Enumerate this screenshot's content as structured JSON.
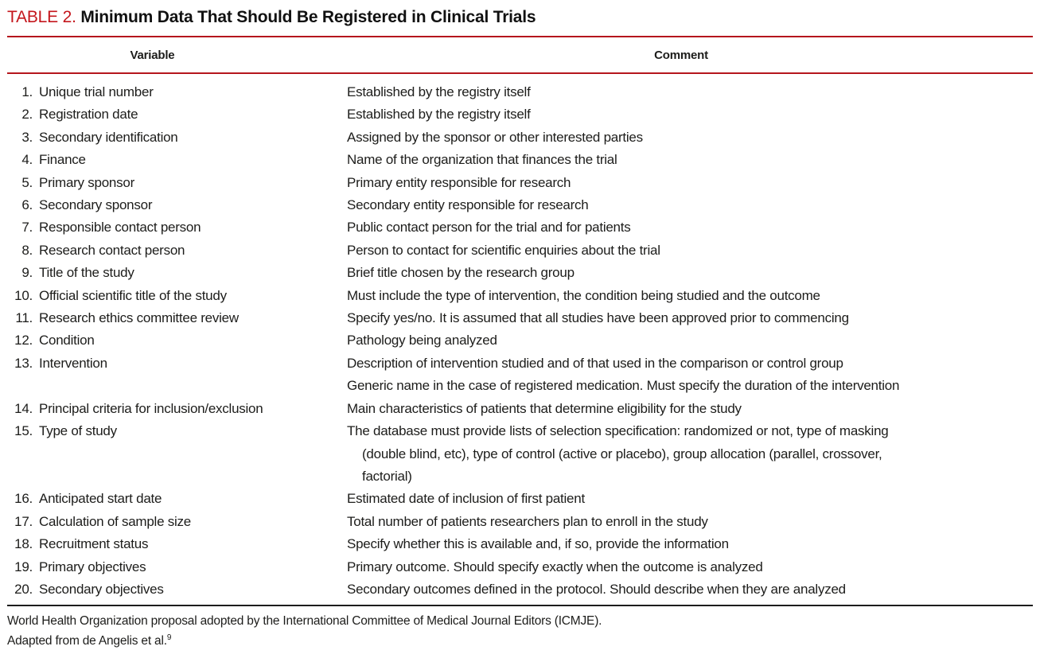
{
  "table": {
    "label": "TABLE 2.",
    "title": "Minimum Data That Should Be Registered in Clinical Trials",
    "columns": [
      "Variable",
      "Comment"
    ],
    "rows": [
      {
        "num": "1.",
        "variable": "Unique trial number",
        "comments": [
          {
            "text": "Established by the registry itself",
            "indent": false
          }
        ]
      },
      {
        "num": "2.",
        "variable": "Registration date",
        "comments": [
          {
            "text": "Established by the registry itself",
            "indent": false
          }
        ]
      },
      {
        "num": "3.",
        "variable": "Secondary identification",
        "comments": [
          {
            "text": "Assigned by the sponsor or other interested parties",
            "indent": false
          }
        ]
      },
      {
        "num": "4.",
        "variable": "Finance",
        "comments": [
          {
            "text": "Name of the organization that finances the trial",
            "indent": false
          }
        ]
      },
      {
        "num": "5.",
        "variable": "Primary sponsor",
        "comments": [
          {
            "text": "Primary entity responsible for research",
            "indent": false
          }
        ]
      },
      {
        "num": "6.",
        "variable": "Secondary sponsor",
        "comments": [
          {
            "text": "Secondary entity responsible for research",
            "indent": false
          }
        ]
      },
      {
        "num": "7.",
        "variable": "Responsible contact person",
        "comments": [
          {
            "text": "Public contact person for the trial and for patients",
            "indent": false
          }
        ]
      },
      {
        "num": "8.",
        "variable": "Research contact person",
        "comments": [
          {
            "text": "Person to contact for scientific enquiries about the trial",
            "indent": false
          }
        ]
      },
      {
        "num": "9.",
        "variable": "Title of the study",
        "comments": [
          {
            "text": "Brief title chosen by the research group",
            "indent": false
          }
        ]
      },
      {
        "num": "10.",
        "variable": "Official scientific title of the study",
        "comments": [
          {
            "text": "Must include the type of intervention, the condition being studied and the outcome",
            "indent": false
          }
        ]
      },
      {
        "num": "11.",
        "variable": "Research ethics committee review",
        "comments": [
          {
            "text": "Specify yes/no. It is assumed that all studies have been approved prior to commencing",
            "indent": false
          }
        ]
      },
      {
        "num": "12.",
        "variable": "Condition",
        "comments": [
          {
            "text": "Pathology being analyzed",
            "indent": false
          }
        ]
      },
      {
        "num": "13.",
        "variable": "Intervention",
        "comments": [
          {
            "text": "Description of intervention studied and of that used in the comparison or control group",
            "indent": false
          },
          {
            "text": "Generic name in the case of registered medication. Must specify the duration of the intervention",
            "indent": false
          }
        ]
      },
      {
        "num": "14.",
        "variable": "Principal criteria for inclusion/exclusion",
        "comments": [
          {
            "text": "Main characteristics of patients that determine eligibility for the study",
            "indent": false
          }
        ]
      },
      {
        "num": "15.",
        "variable": "Type of study",
        "comments": [
          {
            "text": "The database must provide lists of selection specification: randomized or not, type of masking",
            "indent": false
          },
          {
            "text": "(double blind, etc), type of control (active or placebo), group allocation (parallel, crossover,",
            "indent": true
          },
          {
            "text": "factorial)",
            "indent": true
          }
        ]
      },
      {
        "num": "16.",
        "variable": "Anticipated start date",
        "comments": [
          {
            "text": "Estimated date of inclusion of first patient",
            "indent": false
          }
        ]
      },
      {
        "num": "17.",
        "variable": "Calculation of sample size",
        "comments": [
          {
            "text": "Total number of patients researchers plan to enroll in the study",
            "indent": false
          }
        ]
      },
      {
        "num": "18.",
        "variable": "Recruitment status",
        "comments": [
          {
            "text": "Specify whether this is available and, if so, provide the information",
            "indent": false
          }
        ]
      },
      {
        "num": "19.",
        "variable": "Primary objectives",
        "comments": [
          {
            "text": "Primary outcome. Should specify exactly when the outcome is analyzed",
            "indent": false
          }
        ]
      },
      {
        "num": "20.",
        "variable": "Secondary objectives",
        "comments": [
          {
            "text": "Secondary outcomes defined in the protocol. Should describe when they are analyzed",
            "indent": false
          }
        ]
      }
    ],
    "footnotes": {
      "line1": "World Health Organization proposal adopted by the International Committee of Medical Journal Editors (ICMJE).",
      "line2": "Adapted from de Angelis et al.",
      "line2_ref": "9"
    },
    "colors": {
      "accent_red": "#b5161d",
      "title_red": "#c4161c",
      "rule_black": "#1c1c1c",
      "text": "#1d1d1b"
    }
  }
}
